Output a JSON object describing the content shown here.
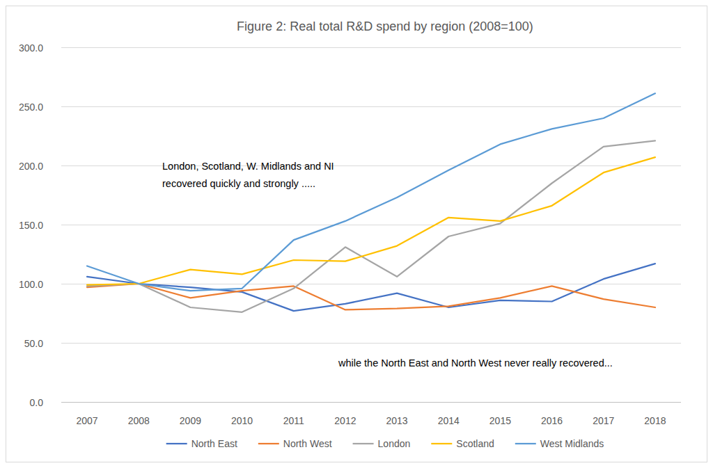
{
  "chart_data": {
    "type": "line",
    "title": "Figure 2: Real total R&D spend by region (2008=100)",
    "categories": [
      "2007",
      "2008",
      "2009",
      "2010",
      "2011",
      "2012",
      "2013",
      "2014",
      "2015",
      "2016",
      "2017",
      "2018"
    ],
    "series": [
      {
        "name": "North East",
        "color": "#4472c4",
        "values": [
          106,
          100,
          97,
          93,
          77,
          83,
          92,
          80,
          86,
          85,
          104,
          117
        ]
      },
      {
        "name": "North West",
        "color": "#ed7d31",
        "values": [
          97,
          100,
          88,
          94,
          98,
          78,
          79,
          81,
          88,
          98,
          87,
          80
        ]
      },
      {
        "name": "London",
        "color": "#a5a5a5",
        "values": [
          98,
          100,
          80,
          76,
          96,
          131,
          106,
          140,
          151,
          185,
          216,
          221
        ]
      },
      {
        "name": "Scotland",
        "color": "#ffc000",
        "values": [
          99,
          100,
          112,
          108,
          120,
          119,
          132,
          156,
          153,
          166,
          194,
          207
        ]
      },
      {
        "name": "West Midlands",
        "color": "#5b9bd5",
        "values": [
          115,
          100,
          94,
          96,
          137,
          153,
          173,
          196,
          218,
          231,
          240,
          261
        ]
      }
    ],
    "ylim": [
      0,
      300
    ],
    "yticks": [
      {
        "value": 0,
        "label": "0.0"
      },
      {
        "value": 50,
        "label": "50.0"
      },
      {
        "value": 100,
        "label": "100.0"
      },
      {
        "value": 150,
        "label": "150.0"
      },
      {
        "value": 200,
        "label": "200.0"
      },
      {
        "value": 250,
        "label": "250.0"
      },
      {
        "value": 300,
        "label": "300.0"
      }
    ],
    "annotations": [
      [
        "London, Scotland, W. Midlands and NI",
        "recovered quickly and strongly ....."
      ],
      [
        "while the North East and North West never really recovered..."
      ]
    ],
    "grid": true,
    "legend": "bottom"
  }
}
